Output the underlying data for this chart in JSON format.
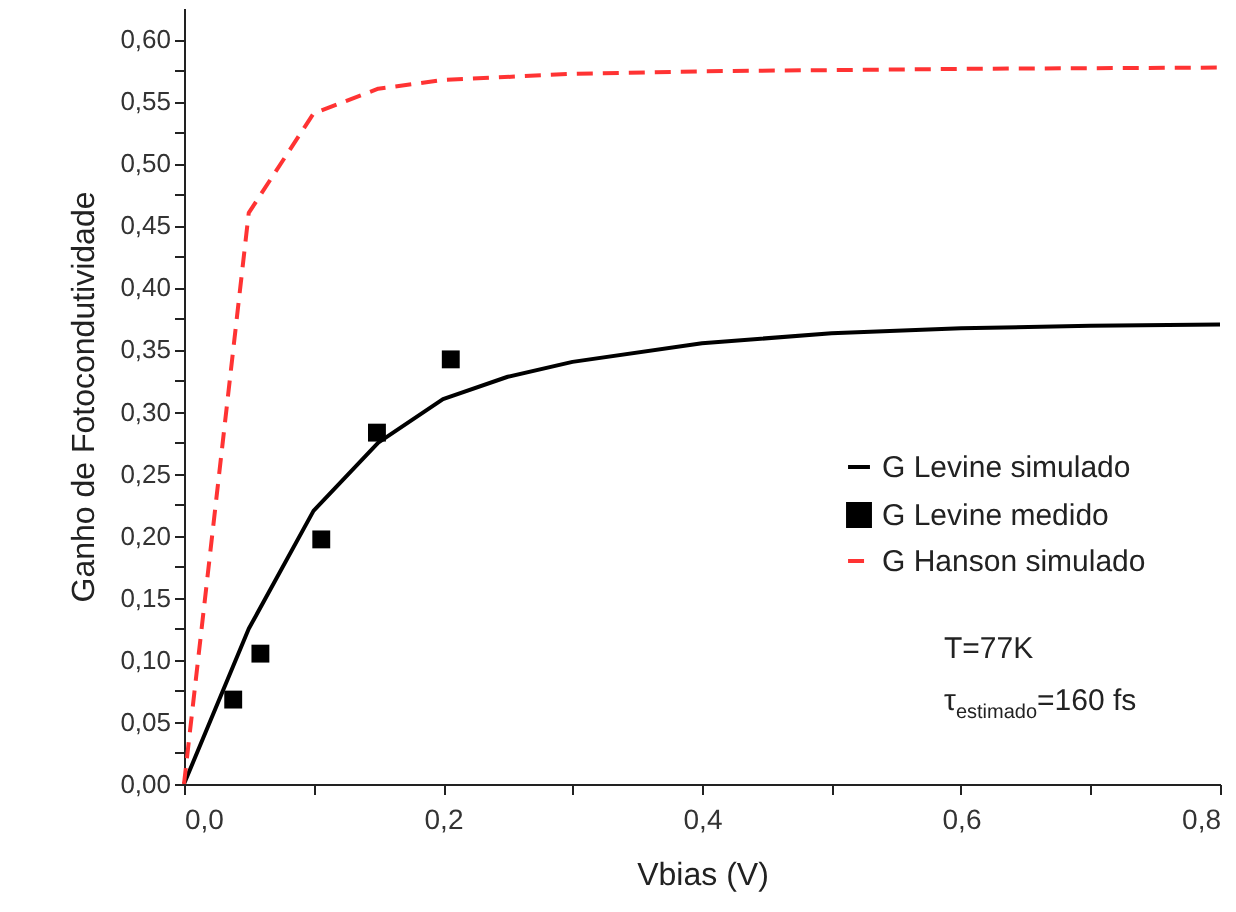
{
  "chart_data": {
    "type": "line",
    "xlabel": "Vbias (V)",
    "ylabel": "Ganho de Fotocondutividade",
    "xlim": [
      0,
      0.8
    ],
    "ylim": [
      0,
      0.625
    ],
    "xticks": [
      {
        "value": 0,
        "label": "0,0"
      },
      {
        "value": 0.1,
        "label": null
      },
      {
        "value": 0.2,
        "label": "0,2"
      },
      {
        "value": 0.3,
        "label": null
      },
      {
        "value": 0.4,
        "label": "0,4"
      },
      {
        "value": 0.5,
        "label": null
      },
      {
        "value": 0.6,
        "label": "0,6"
      },
      {
        "value": 0.7,
        "label": null
      },
      {
        "value": 0.8,
        "label": "0,8"
      }
    ],
    "yticks": [
      {
        "value": 0,
        "label": "0,00"
      },
      {
        "value": 0.025,
        "label": null
      },
      {
        "value": 0.05,
        "label": "0,05"
      },
      {
        "value": 0.075,
        "label": null
      },
      {
        "value": 0.1,
        "label": "0,10"
      },
      {
        "value": 0.125,
        "label": null
      },
      {
        "value": 0.15,
        "label": "0,15"
      },
      {
        "value": 0.175,
        "label": null
      },
      {
        "value": 0.2,
        "label": "0,20"
      },
      {
        "value": 0.225,
        "label": null
      },
      {
        "value": 0.25,
        "label": "0,25"
      },
      {
        "value": 0.275,
        "label": null
      },
      {
        "value": 0.3,
        "label": "0,30"
      },
      {
        "value": 0.325,
        "label": null
      },
      {
        "value": 0.35,
        "label": "0,35"
      },
      {
        "value": 0.375,
        "label": null
      },
      {
        "value": 0.4,
        "label": "0,40"
      },
      {
        "value": 0.425,
        "label": null
      },
      {
        "value": 0.45,
        "label": "0,45"
      },
      {
        "value": 0.475,
        "label": null
      },
      {
        "value": 0.5,
        "label": "0,50"
      },
      {
        "value": 0.525,
        "label": null
      },
      {
        "value": 0.55,
        "label": "0,55"
      },
      {
        "value": 0.575,
        "label": null
      },
      {
        "value": 0.6,
        "label": "0,60"
      }
    ],
    "grid": false,
    "legend": "right",
    "series": [
      {
        "name": "G Levine simulado",
        "type": "line",
        "color": "#000000",
        "line_style": "solid",
        "marker": "none",
        "x": [
          0,
          0.05,
          0.1,
          0.15,
          0.2,
          0.25,
          0.3,
          0.4,
          0.5,
          0.6,
          0.7,
          0.8
        ],
        "values": [
          0,
          0.125,
          0.22,
          0.275,
          0.31,
          0.328,
          0.34,
          0.355,
          0.363,
          0.367,
          0.369,
          0.37
        ]
      },
      {
        "name": "G Levine medido",
        "type": "scatter",
        "color": "#000000",
        "marker": "square",
        "x": [
          0.038,
          0.059,
          0.106,
          0.149,
          0.206
        ],
        "values": [
          0.068,
          0.105,
          0.197,
          0.283,
          0.342
        ]
      },
      {
        "name": "G Hanson simulado",
        "type": "line",
        "color": "#ff3333",
        "line_style": "dashed",
        "marker": "none",
        "x": [
          0,
          0.05,
          0.1,
          0.15,
          0.2,
          0.3,
          0.4,
          0.6,
          0.8
        ],
        "values": [
          0,
          0.46,
          0.54,
          0.56,
          0.567,
          0.572,
          0.574,
          0.576,
          0.577
        ]
      }
    ],
    "annotations": [
      "T=77K",
      "τ$_{estimado}$=160 fs"
    ]
  }
}
